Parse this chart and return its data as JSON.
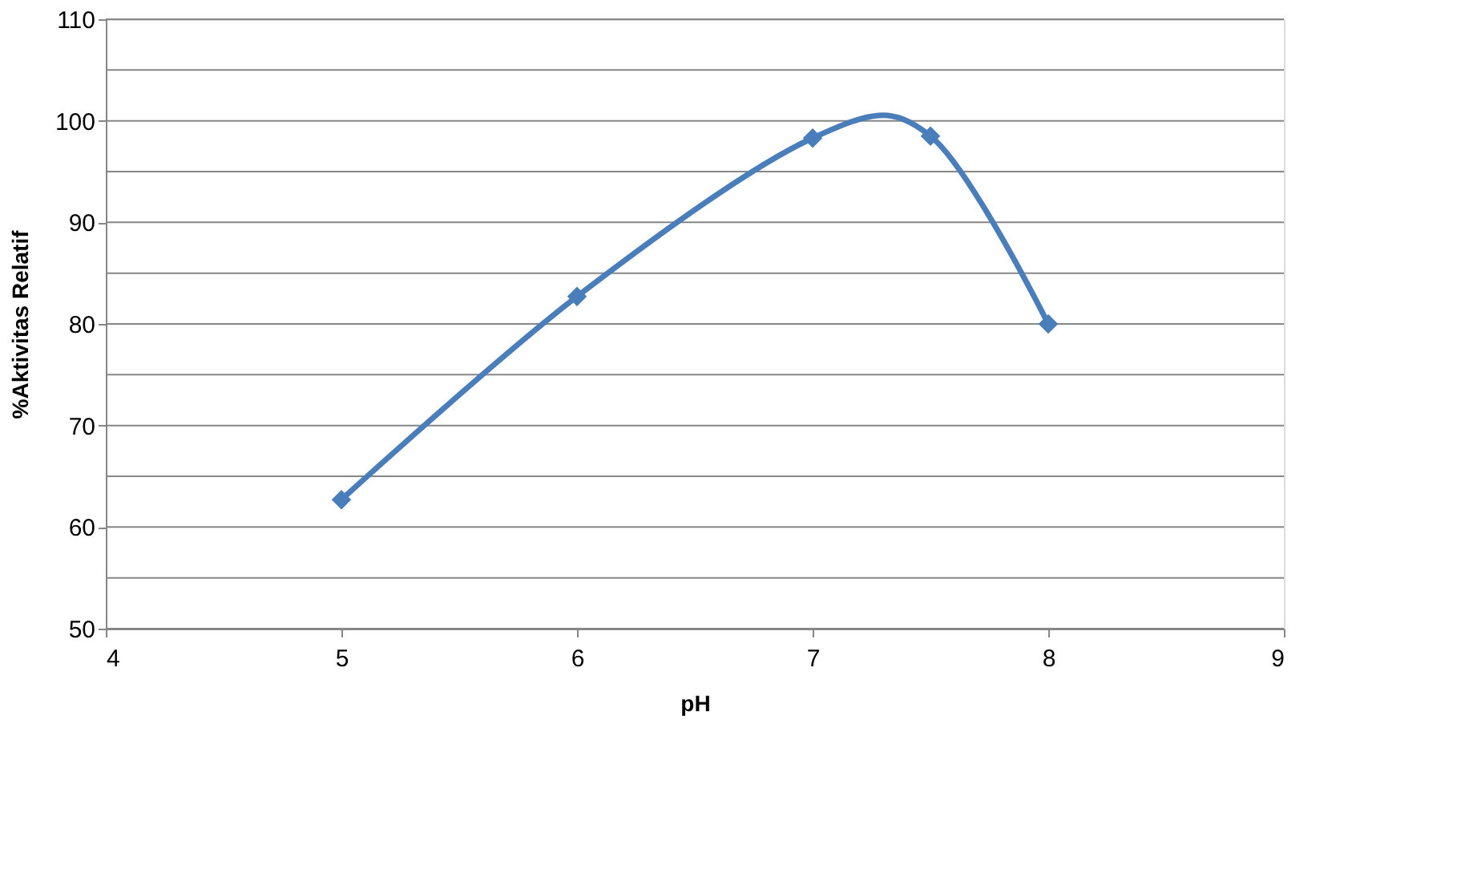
{
  "chart_data": {
    "type": "line",
    "xlabel": "pH",
    "ylabel": "%Aktivitas Relatif",
    "x": [
      5,
      6,
      7,
      7.5,
      8
    ],
    "series": [
      {
        "color": "#4a7ebb",
        "values": [
          62.7,
          82.7,
          98.3,
          98.5,
          80
        ]
      }
    ],
    "xlim": [
      4,
      9
    ],
    "xticks": [
      4,
      5,
      6,
      7,
      8,
      9
    ],
    "ylim": [
      50,
      110
    ],
    "yticks": [
      50,
      {
        "value": 55,
        "label": null
      },
      60,
      {
        "value": 65,
        "label": null
      },
      70,
      {
        "value": 75,
        "label": null
      },
      80,
      {
        "value": 85,
        "label": null
      },
      90,
      {
        "value": 95,
        "label": null
      },
      100,
      {
        "value": 105,
        "label": null
      },
      110
    ],
    "grid": "y",
    "marker": "diamond",
    "line_style": "solid"
  }
}
